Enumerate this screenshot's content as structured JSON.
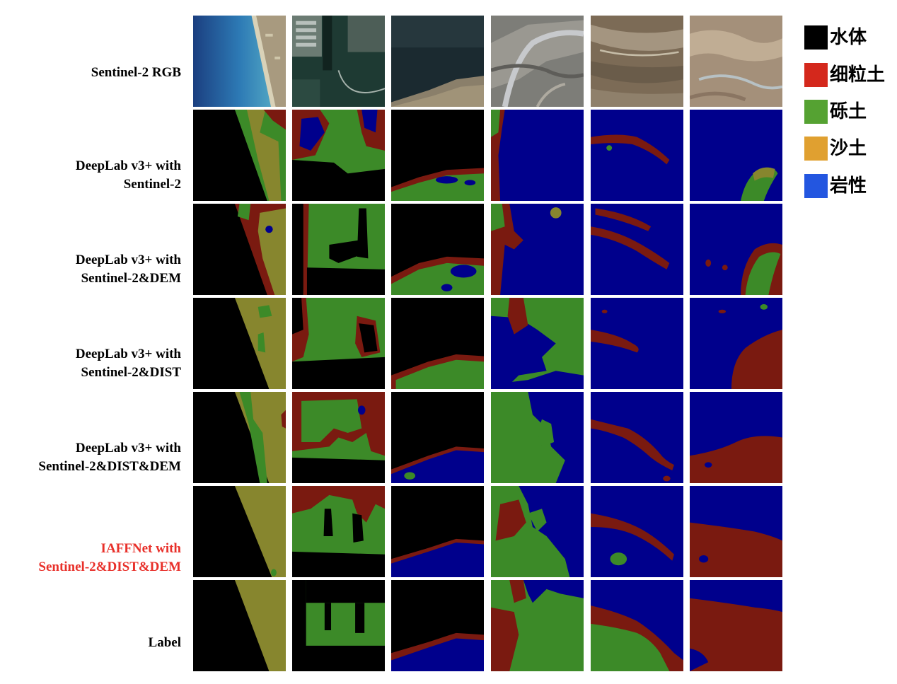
{
  "figure": {
    "row_labels": [
      {
        "line1": "Sentinel-2 RGB",
        "line2": ""
      },
      {
        "line1": "DeepLab v3+ with",
        "line2": "Sentinel-2"
      },
      {
        "line1": "DeepLab v3+ with",
        "line2": "Sentinel-2&DEM"
      },
      {
        "line1": "DeepLab v3+ with",
        "line2": "Sentinel-2&DIST"
      },
      {
        "line1": "DeepLab v3+ with",
        "line2": "Sentinel-2&DIST&DEM"
      },
      {
        "line1": "IAFFNet with",
        "line2": "Sentinel-2&DIST&DEM"
      },
      {
        "line1": "Label",
        "line2": ""
      }
    ],
    "highlight_row_color": "#e8302a",
    "class_colors": {
      "water": "#000000",
      "fine_soil": "#7a1a10",
      "gravel_soil": "#3c8a28",
      "sandy_soil": "#87862e",
      "rock": "#00008c"
    }
  },
  "legend": [
    {
      "label": "水体",
      "color": "#000000"
    },
    {
      "label": "细粒土",
      "color": "#d4281c"
    },
    {
      "label": "砾土",
      "color": "#55a232"
    },
    {
      "label": "沙土",
      "color": "#e0a030"
    },
    {
      "label": "岩性",
      "color": "#2356e0"
    }
  ]
}
